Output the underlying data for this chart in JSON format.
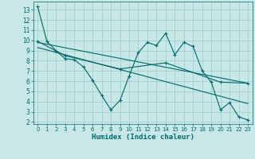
{
  "title": "",
  "xlabel": "Humidex (Indice chaleur)",
  "bg_color": "#c8e8e8",
  "grid_color": "#a0c8c8",
  "line_color": "#006868",
  "xlim": [
    -0.5,
    23.5
  ],
  "ylim": [
    1.8,
    13.8
  ],
  "xticks": [
    0,
    1,
    2,
    3,
    4,
    5,
    6,
    7,
    8,
    9,
    10,
    11,
    12,
    13,
    14,
    15,
    16,
    17,
    18,
    19,
    20,
    21,
    22,
    23
  ],
  "yticks": [
    2,
    3,
    4,
    5,
    6,
    7,
    8,
    9,
    10,
    11,
    12,
    13
  ],
  "line1_x": [
    0,
    1,
    2,
    3,
    4,
    5,
    6,
    7,
    8,
    9,
    10,
    11,
    12,
    13,
    14,
    15,
    16,
    17,
    18,
    19,
    20,
    21,
    22,
    23
  ],
  "line1_y": [
    13.3,
    9.9,
    9.0,
    8.2,
    8.1,
    7.4,
    6.1,
    4.6,
    3.2,
    4.1,
    6.5,
    8.8,
    9.8,
    9.5,
    10.7,
    8.6,
    9.8,
    9.4,
    7.0,
    5.9,
    3.2,
    3.9,
    2.5,
    2.2
  ],
  "line2_x": [
    0,
    3,
    9,
    14,
    20,
    23
  ],
  "line2_y": [
    9.9,
    8.5,
    7.2,
    7.8,
    5.9,
    5.8
  ],
  "line3_x": [
    0,
    23
  ],
  "line3_y": [
    9.8,
    5.8
  ],
  "line4_x": [
    0,
    23
  ],
  "line4_y": [
    9.3,
    3.8
  ]
}
